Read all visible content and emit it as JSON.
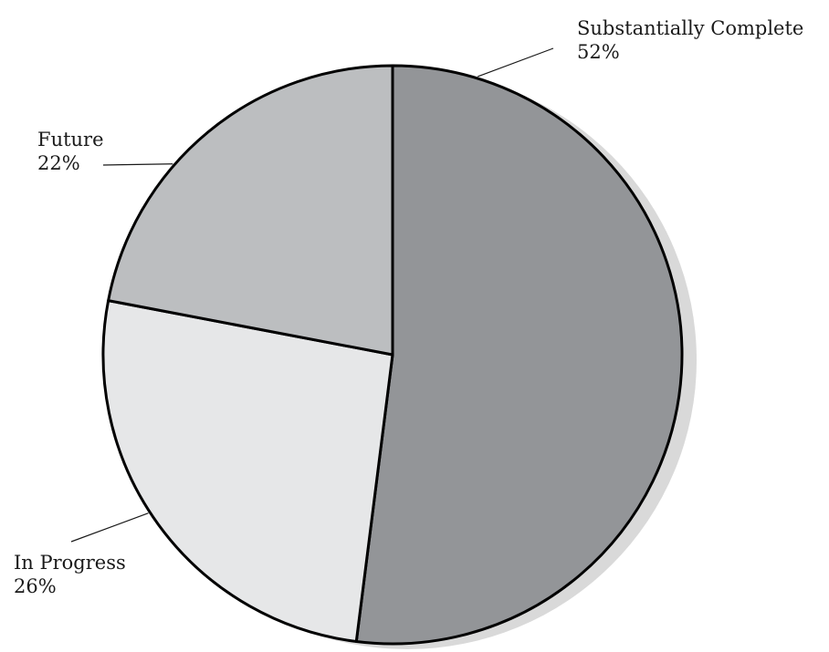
{
  "chart_data": {
    "type": "pie",
    "title": "",
    "slices": [
      {
        "name": "Substantially Complete",
        "value": 52,
        "value_label": "52%",
        "color": "#939598"
      },
      {
        "name": "In Progress",
        "value": 26,
        "value_label": "26%",
        "color": "#e6e7e8"
      },
      {
        "name": "Future",
        "value": 22,
        "value_label": "22%",
        "color": "#bcbec0"
      }
    ],
    "start": "12 o'clock",
    "direction": "clockwise",
    "shadow_color": "#d9d9d9",
    "outline_color": "#000000",
    "legend": "none",
    "labels": "outside with leader lines"
  }
}
